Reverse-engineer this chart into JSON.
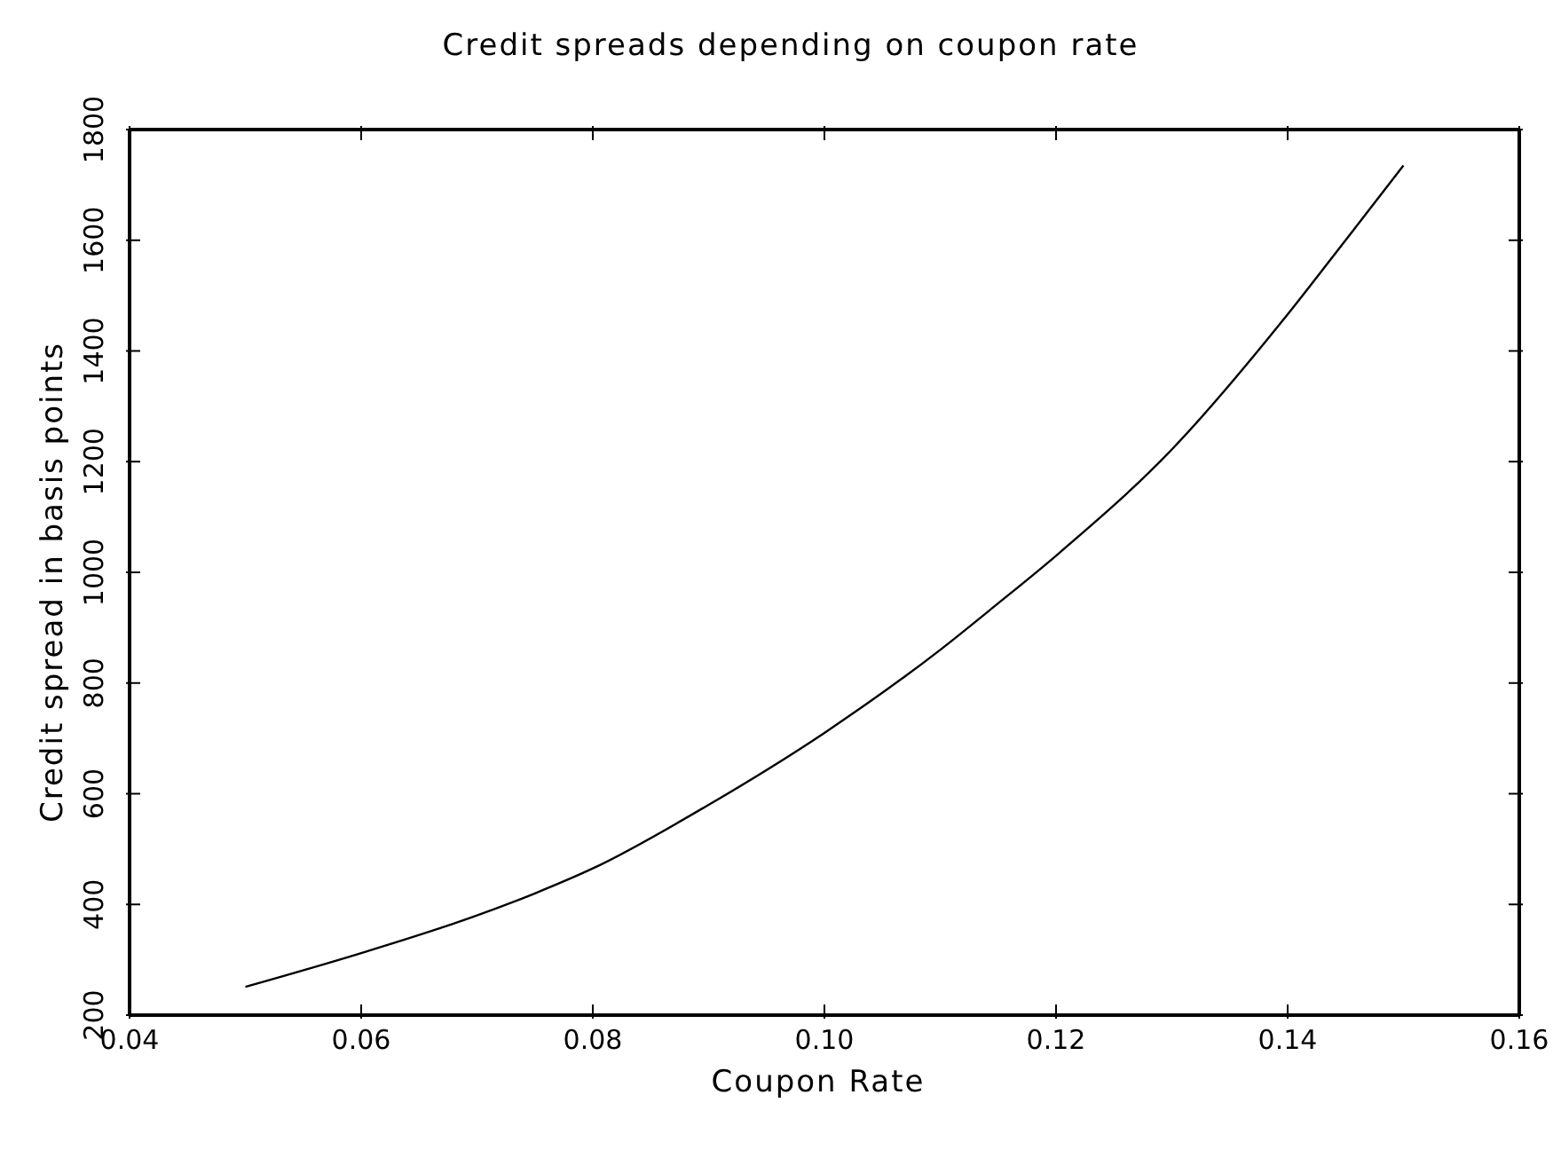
{
  "chart_data": {
    "type": "line",
    "title": "Credit spreads depending on coupon rate",
    "xlabel": "Coupon Rate",
    "ylabel": "Credit spread in basis points",
    "x": [
      0.05,
      0.06,
      0.07,
      0.075,
      0.08,
      0.09,
      0.1,
      0.11,
      0.115,
      0.12,
      0.13,
      0.14,
      0.145,
      0.15
    ],
    "series": [
      {
        "color": "#000000",
        "values": [
          251,
          312,
          380,
          420,
          465,
          580,
          710,
          860,
          944,
          1030,
          1222,
          1466,
          1600,
          1735
        ]
      }
    ],
    "xlim": [
      0.04,
      0.16
    ],
    "xticks": [
      {
        "value": 0.04,
        "label": "0.04"
      },
      {
        "value": 0.06,
        "label": "0.06"
      },
      {
        "value": 0.08,
        "label": "0.08"
      },
      {
        "value": 0.1,
        "label": "0.10"
      },
      {
        "value": 0.12,
        "label": "0.12"
      },
      {
        "value": 0.14,
        "label": "0.14"
      },
      {
        "value": 0.16,
        "label": "0.16"
      }
    ],
    "ylim": [
      200,
      1800
    ],
    "yticks": [
      200,
      400,
      600,
      800,
      1000,
      1200,
      1400,
      1600,
      1800
    ],
    "grid": false,
    "legend": false,
    "marker": "none",
    "line_style": "solid"
  }
}
